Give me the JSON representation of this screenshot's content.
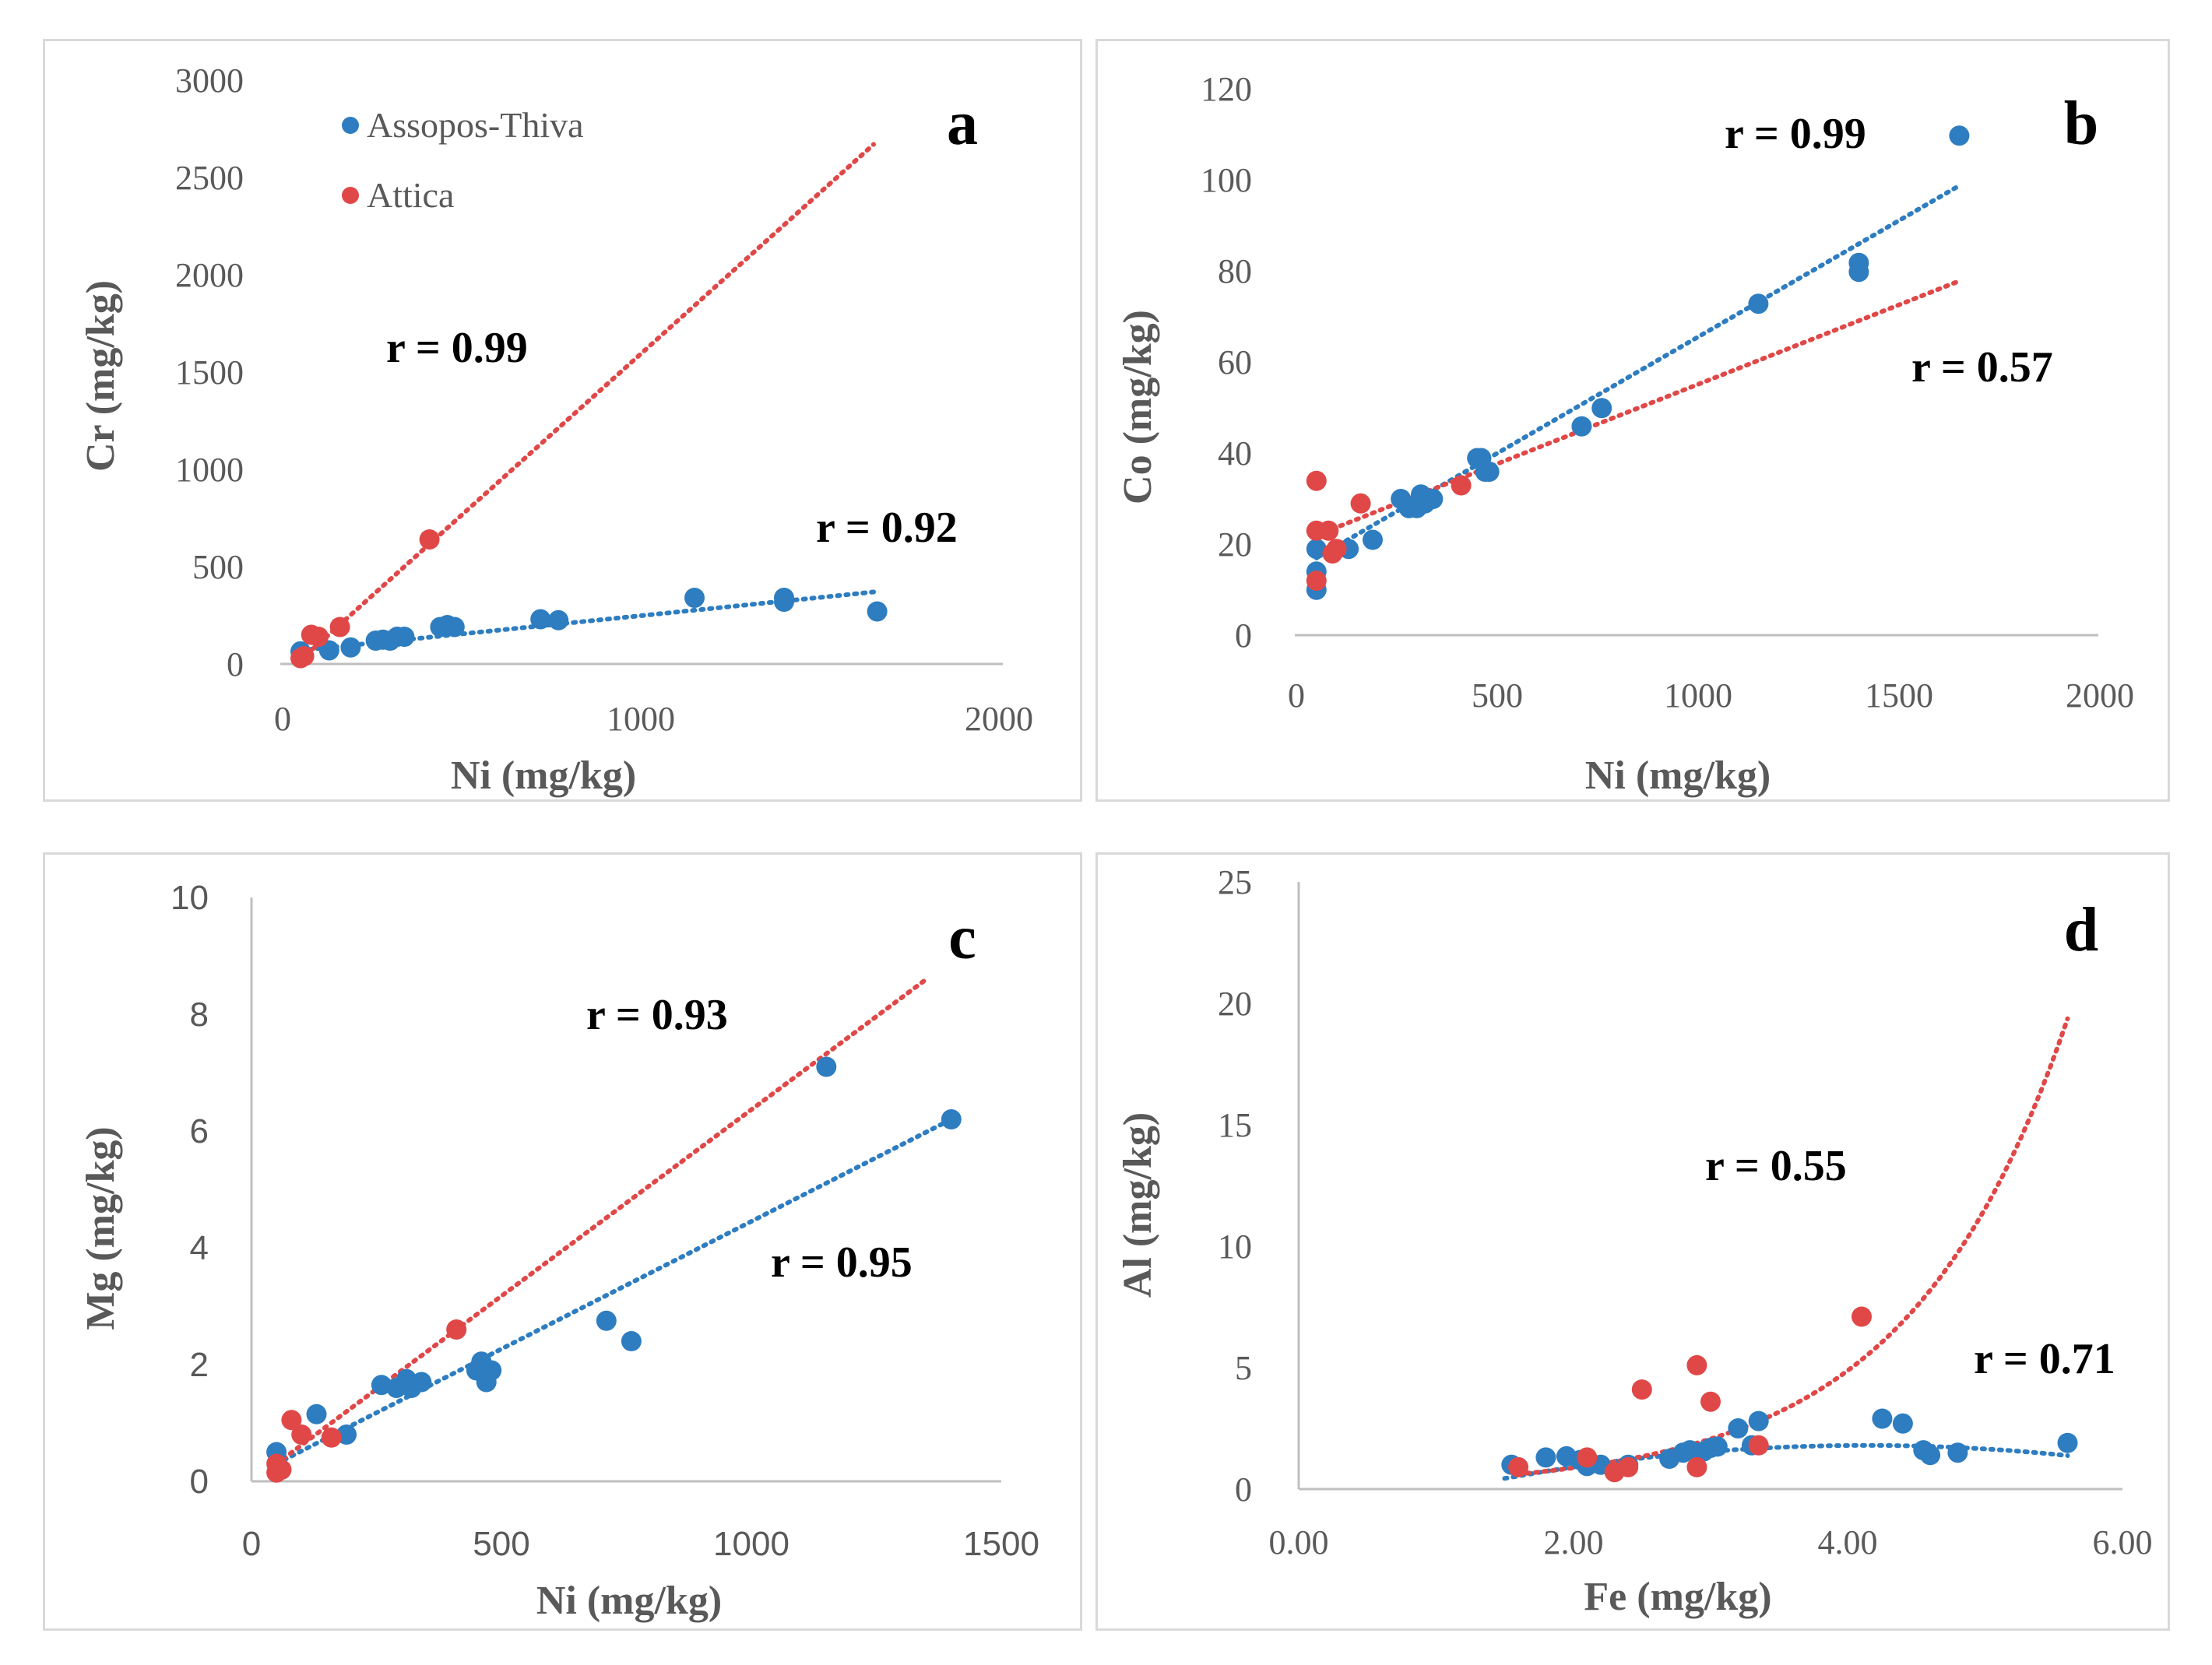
{
  "colors": {
    "assopos": "#2e7dc0",
    "attica": "#e04848",
    "axis": "#bfbfbf",
    "text": "#595959"
  },
  "legend": {
    "series_1": "Assopos-Thiva",
    "series_2": "Attica"
  },
  "chart_data": [
    {
      "id": "a",
      "type": "scatter",
      "panel_label": "a",
      "xlabel": "Ni (mg/kg)",
      "ylabel": "Cr (mg/kg)",
      "xlim": [
        0,
        2000
      ],
      "ylim": [
        0,
        3000
      ],
      "xticks": [
        0,
        1000,
        2000
      ],
      "yticks": [
        0,
        500,
        1000,
        1500,
        2000,
        2500,
        3000
      ],
      "xtick_labels": [
        "0",
        "1000",
        "2000"
      ],
      "ytick_labels": [
        "0",
        "500",
        "1000",
        "1500",
        "2000",
        "2500",
        "3000"
      ],
      "series": [
        {
          "name": "Assopos-Thiva",
          "color": "#2e7dc0",
          "points": [
            [
              50,
              65
            ],
            [
              130,
              70
            ],
            [
              190,
              85
            ],
            [
              260,
              120
            ],
            [
              280,
              125
            ],
            [
              300,
              120
            ],
            [
              320,
              140
            ],
            [
              340,
              140
            ],
            [
              440,
              190
            ],
            [
              460,
              200
            ],
            [
              480,
              190
            ],
            [
              720,
              230
            ],
            [
              770,
              225
            ],
            [
              1150,
              340
            ],
            [
              1400,
              340
            ],
            [
              1400,
              320
            ],
            [
              1660,
              270
            ]
          ],
          "trend": {
            "kind": "linear",
            "x": [
              50,
              1650
            ],
            "y": [
              70,
              370
            ]
          },
          "r_label": "r = 0.92"
        },
        {
          "name": "Attica",
          "color": "#e04848",
          "points": [
            [
              50,
              30
            ],
            [
              60,
              40
            ],
            [
              80,
              150
            ],
            [
              100,
              140
            ],
            [
              160,
              190
            ],
            [
              410,
              640
            ]
          ],
          "trend": {
            "kind": "linear",
            "x": [
              50,
              1650
            ],
            "y": [
              20,
              2670
            ]
          },
          "r_label": "r = 0.99"
        }
      ]
    },
    {
      "id": "b",
      "type": "scatter",
      "panel_label": "b",
      "xlabel": "Ni (mg/kg)",
      "ylabel": "Co (mg/kg)",
      "xlim": [
        0,
        2000
      ],
      "ylim": [
        0,
        120
      ],
      "xticks": [
        0,
        500,
        1000,
        1500,
        2000
      ],
      "yticks": [
        0,
        20,
        40,
        60,
        80,
        100,
        120
      ],
      "xtick_labels": [
        "0",
        "500",
        "1000",
        "1500",
        "2000"
      ],
      "ytick_labels": [
        "0",
        "20",
        "40",
        "60",
        "80",
        "100",
        "120"
      ],
      "series": [
        {
          "name": "Assopos-Thiva",
          "color": "#2e7dc0",
          "points": [
            [
              50,
              10
            ],
            [
              50,
              14
            ],
            [
              50,
              19
            ],
            [
              130,
              19
            ],
            [
              190,
              21
            ],
            [
              260,
              30
            ],
            [
              280,
              28
            ],
            [
              300,
              28
            ],
            [
              310,
              31
            ],
            [
              320,
              29
            ],
            [
              340,
              30
            ],
            [
              450,
              39
            ],
            [
              460,
              39
            ],
            [
              470,
              36
            ],
            [
              480,
              36
            ],
            [
              710,
              46
            ],
            [
              760,
              50
            ],
            [
              1150,
              73
            ],
            [
              1400,
              82
            ],
            [
              1400,
              80
            ],
            [
              1650,
              110
            ]
          ],
          "trend": {
            "kind": "linear",
            "x": [
              50,
              1650
            ],
            "y": [
              17,
              99
            ]
          },
          "r_label": "r = 0.99"
        },
        {
          "name": "Attica",
          "color": "#e04848",
          "points": [
            [
              50,
              34
            ],
            [
              50,
              23
            ],
            [
              50,
              12
            ],
            [
              80,
              23
            ],
            [
              90,
              18
            ],
            [
              100,
              19
            ],
            [
              160,
              29
            ],
            [
              410,
              33
            ]
          ],
          "trend": {
            "kind": "linear",
            "x": [
              50,
              1650
            ],
            "y": [
              22,
              78
            ]
          },
          "r_label": "r = 0.57"
        }
      ]
    },
    {
      "id": "c",
      "type": "scatter",
      "panel_label": "c",
      "xlabel": "Ni (mg/kg)",
      "ylabel": "Mg (mg/kg)",
      "xlim": [
        0,
        1500
      ],
      "ylim": [
        0,
        10
      ],
      "xticks": [
        0,
        500,
        1000,
        1500
      ],
      "yticks": [
        0,
        2,
        4,
        6,
        8,
        10
      ],
      "xtick_labels": [
        "0",
        "500",
        "1000",
        "1500"
      ],
      "ytick_labels": [
        "0",
        "2",
        "4",
        "6",
        "8",
        "10"
      ],
      "series": [
        {
          "name": "Assopos-Thiva",
          "color": "#2e7dc0",
          "points": [
            [
              50,
              0.5
            ],
            [
              130,
              1.15
            ],
            [
              190,
              0.8
            ],
            [
              260,
              1.65
            ],
            [
              290,
              1.6
            ],
            [
              310,
              1.75
            ],
            [
              320,
              1.6
            ],
            [
              340,
              1.7
            ],
            [
              450,
              1.9
            ],
            [
              460,
              2.05
            ],
            [
              470,
              1.7
            ],
            [
              480,
              1.9
            ],
            [
              710,
              2.75
            ],
            [
              760,
              2.4
            ],
            [
              1150,
              7.1
            ],
            [
              1400,
              6.2
            ]
          ],
          "trend": {
            "kind": "linear",
            "x": [
              50,
              1400
            ],
            "y": [
              0.3,
              6.2
            ]
          },
          "r_label": "r = 0.95"
        },
        {
          "name": "Attica",
          "color": "#e04848",
          "points": [
            [
              50,
              0.3
            ],
            [
              50,
              0.15
            ],
            [
              60,
              0.2
            ],
            [
              80,
              1.05
            ],
            [
              100,
              0.8
            ],
            [
              160,
              0.75
            ],
            [
              410,
              2.6
            ]
          ],
          "trend": {
            "kind": "linear",
            "x": [
              50,
              1350
            ],
            "y": [
              0.3,
              8.6
            ]
          },
          "r_label": "r = 0.93"
        }
      ]
    },
    {
      "id": "d",
      "type": "scatter",
      "panel_label": "d",
      "xlabel": "Fe (mg/kg)",
      "ylabel": "Al (mg/kg)",
      "xlim": [
        0,
        6
      ],
      "ylim": [
        0,
        25
      ],
      "xticks": [
        0,
        2,
        4,
        6
      ],
      "yticks": [
        0,
        5,
        10,
        15,
        20,
        25
      ],
      "xtick_labels": [
        "0.00",
        "2.00",
        "4.00",
        "6.00"
      ],
      "ytick_labels": [
        "0",
        "5",
        "10",
        "15",
        "20",
        "25"
      ],
      "series": [
        {
          "name": "Assopos-Thiva",
          "color": "#2e7dc0",
          "points": [
            [
              1.55,
              1.0
            ],
            [
              1.8,
              1.3
            ],
            [
              1.95,
              1.35
            ],
            [
              2.05,
              1.2
            ],
            [
              2.1,
              0.95
            ],
            [
              2.2,
              1.0
            ],
            [
              2.4,
              1.0
            ],
            [
              2.7,
              1.25
            ],
            [
              2.8,
              1.5
            ],
            [
              2.85,
              1.6
            ],
            [
              2.95,
              1.55
            ],
            [
              3.0,
              1.7
            ],
            [
              3.05,
              1.75
            ],
            [
              3.2,
              2.5
            ],
            [
              3.3,
              1.8
            ],
            [
              3.35,
              2.8
            ],
            [
              4.25,
              2.9
            ],
            [
              4.4,
              2.7
            ],
            [
              4.55,
              1.6
            ],
            [
              4.6,
              1.4
            ],
            [
              4.8,
              1.5
            ],
            [
              5.6,
              1.9
            ]
          ],
          "trend": {
            "kind": "poly",
            "x": [
              1.5,
              5.6
            ],
            "coef": [
              -1.5524,
              1.6206,
              -0.1959
            ]
          },
          "r_label": "r = 0.71"
        },
        {
          "name": "Attica",
          "color": "#e04848",
          "points": [
            [
              1.6,
              0.9
            ],
            [
              2.1,
              1.3
            ],
            [
              2.3,
              0.7
            ],
            [
              2.4,
              0.9
            ],
            [
              2.5,
              4.1
            ],
            [
              2.9,
              5.1
            ],
            [
              2.9,
              0.9
            ],
            [
              3.0,
              3.6
            ],
            [
              3.35,
              1.8
            ],
            [
              4.1,
              7.1
            ]
          ],
          "trend": {
            "kind": "exp",
            "x": [
              1.6,
              5.6
            ],
            "a": 0.156,
            "b": 0.861
          },
          "r_label": "r = 0.55"
        }
      ]
    }
  ]
}
